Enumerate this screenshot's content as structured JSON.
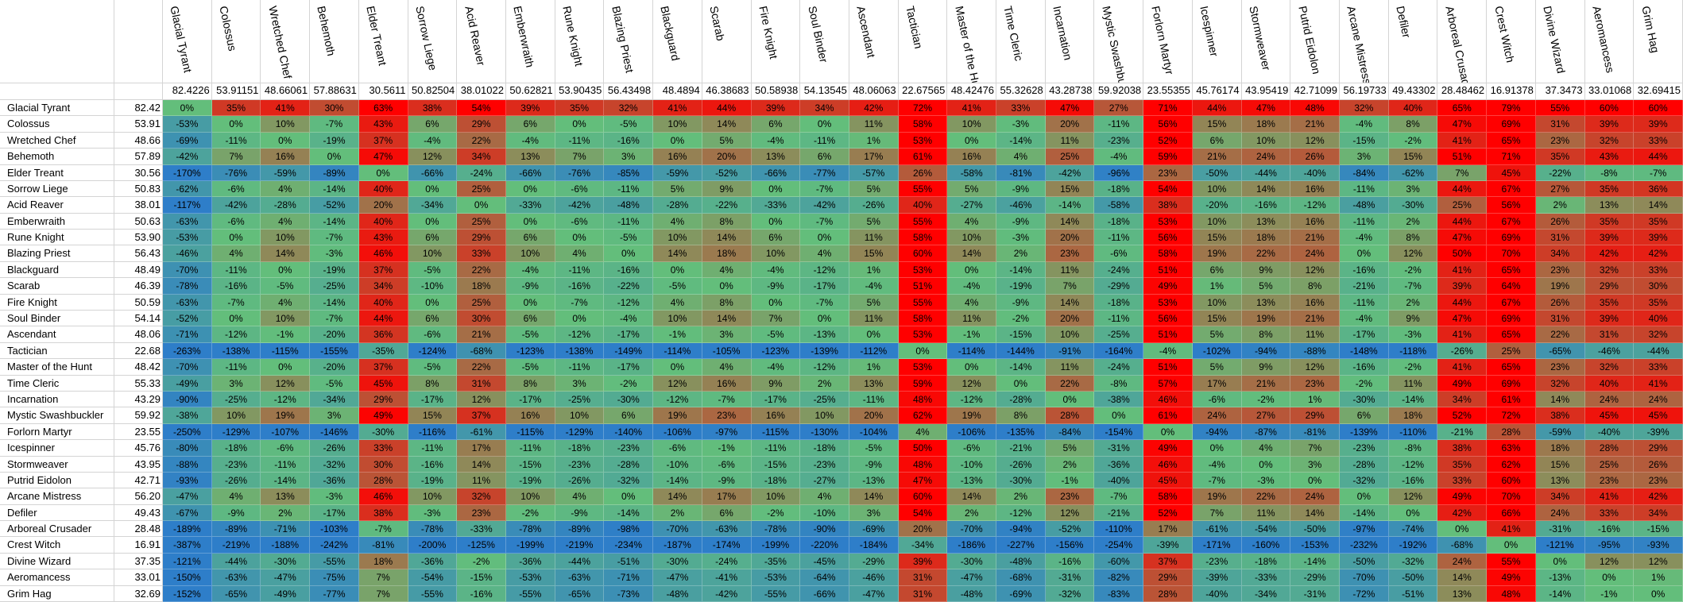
{
  "columns": [
    "Glacial Tyrant",
    "Colossus",
    "Wretched Chef",
    "Behemoth",
    "Elder Treant",
    "Sorrow Liege",
    "Acid Reaver",
    "Emberwraith",
    "Rune Knight",
    "Blazing Priest",
    "Blackguard",
    "Scarab",
    "Fire Knight",
    "Soul Binder",
    "Ascendant",
    "Tactician",
    "Master of the Hunt",
    "Time Cleric",
    "Incarnation",
    "Mystic Swashbuckler",
    "Forlorn Martyr",
    "Icespinner",
    "Stormweaver",
    "Putrid Eidolon",
    "Arcane Mistress",
    "Defiler",
    "Arboreal Crusader",
    "Crest Witch",
    "Divine Wizard",
    "Aeromancess",
    "Grim Hag"
  ],
  "column_averages": [
    "82.4226",
    "53.91151",
    "48.66061",
    "57.88631",
    "30.5611",
    "50.82504",
    "38.01022",
    "50.62821",
    "53.90435",
    "56.43498",
    "48.4894",
    "46.38683",
    "50.58938",
    "54.13545",
    "48.06063",
    "22.67565",
    "48.42476",
    "55.32628",
    "43.28738",
    "59.92038",
    "23.55355",
    "45.76174",
    "43.95419",
    "42.71099",
    "56.19733",
    "49.43302",
    "28.48462",
    "16.91378",
    "37.3473",
    "33.01068",
    "32.69415"
  ],
  "rows": [
    {
      "name": "Glacial Tyrant",
      "avg": "82.42",
      "cells": [
        "0%",
        "35%",
        "41%",
        "30%",
        "63%",
        "38%",
        "54%",
        "39%",
        "35%",
        "32%",
        "41%",
        "44%",
        "39%",
        "34%",
        "42%",
        "72%",
        "41%",
        "33%",
        "47%",
        "27%",
        "71%",
        "44%",
        "47%",
        "48%",
        "32%",
        "40%",
        "65%",
        "79%",
        "55%",
        "60%",
        "60%"
      ]
    },
    {
      "name": "Colossus",
      "avg": "53.91",
      "cells": [
        "-53%",
        "0%",
        "10%",
        "-7%",
        "43%",
        "6%",
        "29%",
        "6%",
        "0%",
        "-5%",
        "10%",
        "14%",
        "6%",
        "0%",
        "11%",
        "58%",
        "10%",
        "-3%",
        "20%",
        "-11%",
        "56%",
        "15%",
        "18%",
        "21%",
        "-4%",
        "8%",
        "47%",
        "69%",
        "31%",
        "39%",
        "39%"
      ]
    },
    {
      "name": "Wretched Chef",
      "avg": "48.66",
      "cells": [
        "-69%",
        "-11%",
        "0%",
        "-19%",
        "37%",
        "-4%",
        "22%",
        "-4%",
        "-11%",
        "-16%",
        "0%",
        "5%",
        "-4%",
        "-11%",
        "1%",
        "53%",
        "0%",
        "-14%",
        "11%",
        "-23%",
        "52%",
        "6%",
        "10%",
        "12%",
        "-15%",
        "-2%",
        "41%",
        "65%",
        "23%",
        "32%",
        "33%"
      ]
    },
    {
      "name": "Behemoth",
      "avg": "57.89",
      "cells": [
        "-42%",
        "7%",
        "16%",
        "0%",
        "47%",
        "12%",
        "34%",
        "13%",
        "7%",
        "3%",
        "16%",
        "20%",
        "13%",
        "6%",
        "17%",
        "61%",
        "16%",
        "4%",
        "25%",
        "-4%",
        "59%",
        "21%",
        "24%",
        "26%",
        "3%",
        "15%",
        "51%",
        "71%",
        "35%",
        "43%",
        "44%"
      ]
    },
    {
      "name": "Elder Treant",
      "avg": "30.56",
      "cells": [
        "-170%",
        "-76%",
        "-59%",
        "-89%",
        "0%",
        "-66%",
        "-24%",
        "-66%",
        "-76%",
        "-85%",
        "-59%",
        "-52%",
        "-66%",
        "-77%",
        "-57%",
        "26%",
        "-58%",
        "-81%",
        "-42%",
        "-96%",
        "23%",
        "-50%",
        "-44%",
        "-40%",
        "-84%",
        "-62%",
        "7%",
        "45%",
        "-22%",
        "-8%",
        "-7%"
      ]
    },
    {
      "name": "Sorrow Liege",
      "avg": "50.83",
      "cells": [
        "-62%",
        "-6%",
        "4%",
        "-14%",
        "40%",
        "0%",
        "25%",
        "0%",
        "-6%",
        "-11%",
        "5%",
        "9%",
        "0%",
        "-7%",
        "5%",
        "55%",
        "5%",
        "-9%",
        "15%",
        "-18%",
        "54%",
        "10%",
        "14%",
        "16%",
        "-11%",
        "3%",
        "44%",
        "67%",
        "27%",
        "35%",
        "36%"
      ]
    },
    {
      "name": "Acid Reaver",
      "avg": "38.01",
      "cells": [
        "-117%",
        "-42%",
        "-28%",
        "-52%",
        "20%",
        "-34%",
        "0%",
        "-33%",
        "-42%",
        "-48%",
        "-28%",
        "-22%",
        "-33%",
        "-42%",
        "-26%",
        "40%",
        "-27%",
        "-46%",
        "-14%",
        "-58%",
        "38%",
        "-20%",
        "-16%",
        "-12%",
        "-48%",
        "-30%",
        "25%",
        "56%",
        "2%",
        "13%",
        "14%"
      ]
    },
    {
      "name": "Emberwraith",
      "avg": "50.63",
      "cells": [
        "-63%",
        "-6%",
        "4%",
        "-14%",
        "40%",
        "0%",
        "25%",
        "0%",
        "-6%",
        "-11%",
        "4%",
        "8%",
        "0%",
        "-7%",
        "5%",
        "55%",
        "4%",
        "-9%",
        "14%",
        "-18%",
        "53%",
        "10%",
        "13%",
        "16%",
        "-11%",
        "2%",
        "44%",
        "67%",
        "26%",
        "35%",
        "35%"
      ]
    },
    {
      "name": "Rune Knight",
      "avg": "53.90",
      "cells": [
        "-53%",
        "0%",
        "10%",
        "-7%",
        "43%",
        "6%",
        "29%",
        "6%",
        "0%",
        "-5%",
        "10%",
        "14%",
        "6%",
        "0%",
        "11%",
        "58%",
        "10%",
        "-3%",
        "20%",
        "-11%",
        "56%",
        "15%",
        "18%",
        "21%",
        "-4%",
        "8%",
        "47%",
        "69%",
        "31%",
        "39%",
        "39%"
      ]
    },
    {
      "name": "Blazing Priest",
      "avg": "56.43",
      "cells": [
        "-46%",
        "4%",
        "14%",
        "-3%",
        "46%",
        "10%",
        "33%",
        "10%",
        "4%",
        "0%",
        "14%",
        "18%",
        "10%",
        "4%",
        "15%",
        "60%",
        "14%",
        "2%",
        "23%",
        "-6%",
        "58%",
        "19%",
        "22%",
        "24%",
        "0%",
        "12%",
        "50%",
        "70%",
        "34%",
        "42%",
        "42%"
      ]
    },
    {
      "name": "Blackguard",
      "avg": "48.49",
      "cells": [
        "-70%",
        "-11%",
        "0%",
        "-19%",
        "37%",
        "-5%",
        "22%",
        "-4%",
        "-11%",
        "-16%",
        "0%",
        "4%",
        "-4%",
        "-12%",
        "1%",
        "53%",
        "0%",
        "-14%",
        "11%",
        "-24%",
        "51%",
        "6%",
        "9%",
        "12%",
        "-16%",
        "-2%",
        "41%",
        "65%",
        "23%",
        "32%",
        "33%"
      ]
    },
    {
      "name": "Scarab",
      "avg": "46.39",
      "cells": [
        "-78%",
        "-16%",
        "-5%",
        "-25%",
        "34%",
        "-10%",
        "18%",
        "-9%",
        "-16%",
        "-22%",
        "-5%",
        "0%",
        "-9%",
        "-17%",
        "-4%",
        "51%",
        "-4%",
        "-19%",
        "7%",
        "-29%",
        "49%",
        "1%",
        "5%",
        "8%",
        "-21%",
        "-7%",
        "39%",
        "64%",
        "19%",
        "29%",
        "30%"
      ]
    },
    {
      "name": "Fire Knight",
      "avg": "50.59",
      "cells": [
        "-63%",
        "-7%",
        "4%",
        "-14%",
        "40%",
        "0%",
        "25%",
        "0%",
        "-7%",
        "-12%",
        "4%",
        "8%",
        "0%",
        "-7%",
        "5%",
        "55%",
        "4%",
        "-9%",
        "14%",
        "-18%",
        "53%",
        "10%",
        "13%",
        "16%",
        "-11%",
        "2%",
        "44%",
        "67%",
        "26%",
        "35%",
        "35%"
      ]
    },
    {
      "name": "Soul Binder",
      "avg": "54.14",
      "cells": [
        "-52%",
        "0%",
        "10%",
        "-7%",
        "44%",
        "6%",
        "30%",
        "6%",
        "0%",
        "-4%",
        "10%",
        "14%",
        "7%",
        "0%",
        "11%",
        "58%",
        "11%",
        "-2%",
        "20%",
        "-11%",
        "56%",
        "15%",
        "19%",
        "21%",
        "-4%",
        "9%",
        "47%",
        "69%",
        "31%",
        "39%",
        "40%"
      ]
    },
    {
      "name": "Ascendant",
      "avg": "48.06",
      "cells": [
        "-71%",
        "-12%",
        "-1%",
        "-20%",
        "36%",
        "-6%",
        "21%",
        "-5%",
        "-12%",
        "-17%",
        "-1%",
        "3%",
        "-5%",
        "-13%",
        "0%",
        "53%",
        "-1%",
        "-15%",
        "10%",
        "-25%",
        "51%",
        "5%",
        "8%",
        "11%",
        "-17%",
        "-3%",
        "41%",
        "65%",
        "22%",
        "31%",
        "32%"
      ]
    },
    {
      "name": "Tactician",
      "avg": "22.68",
      "cells": [
        "-263%",
        "-138%",
        "-115%",
        "-155%",
        "-35%",
        "-124%",
        "-68%",
        "-123%",
        "-138%",
        "-149%",
        "-114%",
        "-105%",
        "-123%",
        "-139%",
        "-112%",
        "0%",
        "-114%",
        "-144%",
        "-91%",
        "-164%",
        "-4%",
        "-102%",
        "-94%",
        "-88%",
        "-148%",
        "-118%",
        "-26%",
        "25%",
        "-65%",
        "-46%",
        "-44%"
      ]
    },
    {
      "name": "Master of the Hunt",
      "avg": "48.42",
      "cells": [
        "-70%",
        "-11%",
        "0%",
        "-20%",
        "37%",
        "-5%",
        "22%",
        "-5%",
        "-11%",
        "-17%",
        "0%",
        "4%",
        "-4%",
        "-12%",
        "1%",
        "53%",
        "0%",
        "-14%",
        "11%",
        "-24%",
        "51%",
        "5%",
        "9%",
        "12%",
        "-16%",
        "-2%",
        "41%",
        "65%",
        "23%",
        "32%",
        "33%"
      ]
    },
    {
      "name": "Time Cleric",
      "avg": "55.33",
      "cells": [
        "-49%",
        "3%",
        "12%",
        "-5%",
        "45%",
        "8%",
        "31%",
        "8%",
        "3%",
        "-2%",
        "12%",
        "16%",
        "9%",
        "2%",
        "13%",
        "59%",
        "12%",
        "0%",
        "22%",
        "-8%",
        "57%",
        "17%",
        "21%",
        "23%",
        "-2%",
        "11%",
        "49%",
        "69%",
        "32%",
        "40%",
        "41%"
      ]
    },
    {
      "name": "Incarnation",
      "avg": "43.29",
      "cells": [
        "-90%",
        "-25%",
        "-12%",
        "-34%",
        "29%",
        "-17%",
        "12%",
        "-17%",
        "-25%",
        "-30%",
        "-12%",
        "-7%",
        "-17%",
        "-25%",
        "-11%",
        "48%",
        "-12%",
        "-28%",
        "0%",
        "-38%",
        "46%",
        "-6%",
        "-2%",
        "1%",
        "-30%",
        "-14%",
        "34%",
        "61%",
        "14%",
        "24%",
        "24%"
      ]
    },
    {
      "name": "Mystic Swashbuckler",
      "avg": "59.92",
      "cells": [
        "-38%",
        "10%",
        "19%",
        "3%",
        "49%",
        "15%",
        "37%",
        "16%",
        "10%",
        "6%",
        "19%",
        "23%",
        "16%",
        "10%",
        "20%",
        "62%",
        "19%",
        "8%",
        "28%",
        "0%",
        "61%",
        "24%",
        "27%",
        "29%",
        "6%",
        "18%",
        "52%",
        "72%",
        "38%",
        "45%",
        "45%"
      ]
    },
    {
      "name": "Forlorn Martyr",
      "avg": "23.55",
      "cells": [
        "-250%",
        "-129%",
        "-107%",
        "-146%",
        "-30%",
        "-116%",
        "-61%",
        "-115%",
        "-129%",
        "-140%",
        "-106%",
        "-97%",
        "-115%",
        "-130%",
        "-104%",
        "4%",
        "-106%",
        "-135%",
        "-84%",
        "-154%",
        "0%",
        "-94%",
        "-87%",
        "-81%",
        "-139%",
        "-110%",
        "-21%",
        "28%",
        "-59%",
        "-40%",
        "-39%"
      ]
    },
    {
      "name": "Icespinner",
      "avg": "45.76",
      "cells": [
        "-80%",
        "-18%",
        "-6%",
        "-26%",
        "33%",
        "-11%",
        "17%",
        "-11%",
        "-18%",
        "-23%",
        "-6%",
        "-1%",
        "-11%",
        "-18%",
        "-5%",
        "50%",
        "-6%",
        "-21%",
        "5%",
        "-31%",
        "49%",
        "0%",
        "4%",
        "7%",
        "-23%",
        "-8%",
        "38%",
        "63%",
        "18%",
        "28%",
        "29%"
      ]
    },
    {
      "name": "Stormweaver",
      "avg": "43.95",
      "cells": [
        "-88%",
        "-23%",
        "-11%",
        "-32%",
        "30%",
        "-16%",
        "14%",
        "-15%",
        "-23%",
        "-28%",
        "-10%",
        "-6%",
        "-15%",
        "-23%",
        "-9%",
        "48%",
        "-10%",
        "-26%",
        "2%",
        "-36%",
        "46%",
        "-4%",
        "0%",
        "3%",
        "-28%",
        "-12%",
        "35%",
        "62%",
        "15%",
        "25%",
        "26%"
      ]
    },
    {
      "name": "Putrid Eidolon",
      "avg": "42.71",
      "cells": [
        "-93%",
        "-26%",
        "-14%",
        "-36%",
        "28%",
        "-19%",
        "11%",
        "-19%",
        "-26%",
        "-32%",
        "-14%",
        "-9%",
        "-18%",
        "-27%",
        "-13%",
        "47%",
        "-13%",
        "-30%",
        "-1%",
        "-40%",
        "45%",
        "-7%",
        "-3%",
        "0%",
        "-32%",
        "-16%",
        "33%",
        "60%",
        "13%",
        "23%",
        "23%"
      ]
    },
    {
      "name": "Arcane Mistress",
      "avg": "56.20",
      "cells": [
        "-47%",
        "4%",
        "13%",
        "-3%",
        "46%",
        "10%",
        "32%",
        "10%",
        "4%",
        "0%",
        "14%",
        "17%",
        "10%",
        "4%",
        "14%",
        "60%",
        "14%",
        "2%",
        "23%",
        "-7%",
        "58%",
        "19%",
        "22%",
        "24%",
        "0%",
        "12%",
        "49%",
        "70%",
        "34%",
        "41%",
        "42%"
      ]
    },
    {
      "name": "Defiler",
      "avg": "49.43",
      "cells": [
        "-67%",
        "-9%",
        "2%",
        "-17%",
        "38%",
        "-3%",
        "23%",
        "-2%",
        "-9%",
        "-14%",
        "2%",
        "6%",
        "-2%",
        "-10%",
        "3%",
        "54%",
        "2%",
        "-12%",
        "12%",
        "-21%",
        "52%",
        "7%",
        "11%",
        "14%",
        "-14%",
        "0%",
        "42%",
        "66%",
        "24%",
        "33%",
        "34%"
      ]
    },
    {
      "name": "Arboreal Crusader",
      "avg": "28.48",
      "cells": [
        "-189%",
        "-89%",
        "-71%",
        "-103%",
        "-7%",
        "-78%",
        "-33%",
        "-78%",
        "-89%",
        "-98%",
        "-70%",
        "-63%",
        "-78%",
        "-90%",
        "-69%",
        "20%",
        "-70%",
        "-94%",
        "-52%",
        "-110%",
        "17%",
        "-61%",
        "-54%",
        "-50%",
        "-97%",
        "-74%",
        "0%",
        "41%",
        "-31%",
        "-16%",
        "-15%"
      ]
    },
    {
      "name": "Crest Witch",
      "avg": "16.91",
      "cells": [
        "-387%",
        "-219%",
        "-188%",
        "-242%",
        "-81%",
        "-200%",
        "-125%",
        "-199%",
        "-219%",
        "-234%",
        "-187%",
        "-174%",
        "-199%",
        "-220%",
        "-184%",
        "-34%",
        "-186%",
        "-227%",
        "-156%",
        "-254%",
        "-39%",
        "-171%",
        "-160%",
        "-153%",
        "-232%",
        "-192%",
        "-68%",
        "0%",
        "-121%",
        "-95%",
        "-93%"
      ]
    },
    {
      "name": "Divine Wizard",
      "avg": "37.35",
      "cells": [
        "-121%",
        "-44%",
        "-30%",
        "-55%",
        "18%",
        "-36%",
        "-2%",
        "-36%",
        "-44%",
        "-51%",
        "-30%",
        "-24%",
        "-35%",
        "-45%",
        "-29%",
        "39%",
        "-30%",
        "-48%",
        "-16%",
        "-60%",
        "37%",
        "-23%",
        "-18%",
        "-14%",
        "-50%",
        "-32%",
        "24%",
        "55%",
        "0%",
        "12%",
        "12%"
      ]
    },
    {
      "name": "Aeromancess",
      "avg": "33.01",
      "cells": [
        "-150%",
        "-63%",
        "-47%",
        "-75%",
        "7%",
        "-54%",
        "-15%",
        "-53%",
        "-63%",
        "-71%",
        "-47%",
        "-41%",
        "-53%",
        "-64%",
        "-46%",
        "31%",
        "-47%",
        "-68%",
        "-31%",
        "-82%",
        "29%",
        "-39%",
        "-33%",
        "-29%",
        "-70%",
        "-50%",
        "14%",
        "49%",
        "-13%",
        "0%",
        "1%"
      ]
    },
    {
      "name": "Grim Hag",
      "avg": "32.69",
      "cells": [
        "-152%",
        "-65%",
        "-49%",
        "-77%",
        "7%",
        "-55%",
        "-16%",
        "-55%",
        "-65%",
        "-73%",
        "-48%",
        "-42%",
        "-55%",
        "-66%",
        "-47%",
        "31%",
        "-48%",
        "-69%",
        "-32%",
        "-83%",
        "28%",
        "-40%",
        "-34%",
        "-31%",
        "-72%",
        "-51%",
        "13%",
        "48%",
        "-14%",
        "-1%",
        "0%"
      ]
    }
  ],
  "scale_colors": {
    "low": "#2e7ec9",
    "mid": "#63be7b",
    "high": "#ff0000"
  }
}
